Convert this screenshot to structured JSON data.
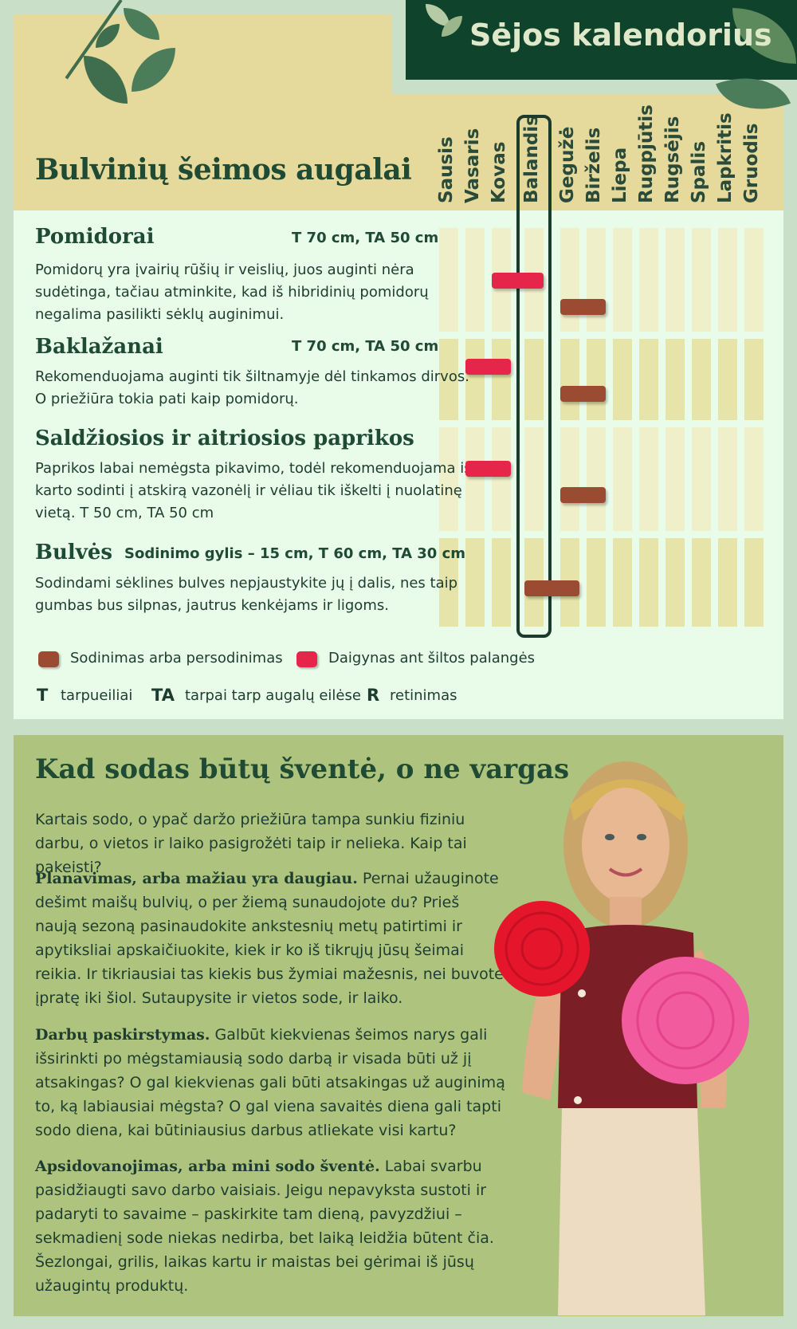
{
  "banner": {
    "title": "Sėjos kalendorius"
  },
  "calendar": {
    "section_title": "Bulvinių šeimos augalai",
    "months": [
      "Sausis",
      "Vasaris",
      "Kovas",
      "Balandis",
      "Gegužė",
      "Birželis",
      "Liepa",
      "Rugpjūtis",
      "Rugsėjis",
      "Spalis",
      "Lapkritis",
      "Gruodis"
    ],
    "highlighted_month": "Balandis",
    "plants": [
      {
        "name": "Pomidorai",
        "spacing": "T 70 cm, TA 50 cm",
        "desc": [
          "Pomidorų yra įvairių rūšių ir veislių, juos auginti nėra",
          "sudėtinga, tačiau atminkite, kad iš hibridinių pomidorų",
          "negalima pasilikti sėklų auginimui."
        ],
        "seedling": {
          "start_month": 3,
          "end_month": 4
        },
        "planting": {
          "start_month": 5,
          "end_month": 6
        }
      },
      {
        "name": "Baklažanai",
        "spacing": "T 70 cm, TA 50 cm",
        "desc": [
          "Rekomenduojama auginti tik šiltnamyje dėl tinkamos dirvos.",
          "O priežiūra tokia pati kaip pomidorų."
        ],
        "seedling": {
          "start_month": 2,
          "end_month": 3
        },
        "planting": {
          "start_month": 5,
          "end_month": 6
        }
      },
      {
        "name": "Saldžiosios ir aitriosios paprikos",
        "spacing": "",
        "desc": [
          "Paprikos labai nemėgsta pikavimo, todėl rekomenduojama iš",
          "karto sodinti į atskirą vazonėlį ir vėliau tik iškelti į nuolatinę",
          "vietą.  T 50 cm, TA 50 cm"
        ],
        "seedling": {
          "start_month": 2,
          "end_month": 3
        },
        "planting": {
          "start_month": 5,
          "end_month": 6
        }
      },
      {
        "name": "Bulvės",
        "spacing": "Sodinimo gylis – 15 cm, T 60 cm, TA 30 cm",
        "desc": [
          "Sodindami sėklines bulves nepjaustykite jų į dalis, nes taip",
          "gumbas bus silpnas, jautrus kenkėjams ir ligoms."
        ],
        "seedling": null,
        "planting": {
          "start_month": 4,
          "end_month": 5
        }
      }
    ],
    "legend": {
      "planting": "Sodinimas arba persodinimas",
      "seedling": "Daigynas ant šiltos palangės"
    },
    "abbreviations": [
      {
        "key": "T",
        "label": "tarpueiliai"
      },
      {
        "key": "TA",
        "label": "tarpai tarp augalų eilėse"
      },
      {
        "key": "R",
        "label": "retinimas"
      }
    ],
    "colors": {
      "planting": "#9a4b32",
      "seedling": "#e5264a",
      "column_light": "#efefc9",
      "column_dark": "#e7e4a9"
    }
  },
  "tips": {
    "title": "Kad sodas būtų šventė, o ne vargas",
    "intro": "Kartais sodo, o ypač daržo priežiūra tampa sunkiu fiziniu darbu, o vietos ir laiko pasigrožėti taip ir nelieka. Kaip tai pakeisti?",
    "items": [
      {
        "heading": "Planavimas, arba mažiau yra daugiau.",
        "text": " Pernai užauginote dešimt maišų bulvių, o per žiemą sunaudojote du? Prieš naują sezoną pasinaudokite ankstesnių metų patirtimi ir apytiksliai apskaičiuokite, kiek ir ko iš tikrųjų jūsų šeimai reikia. Ir tikriausiai tas kiekis bus žymiai mažesnis, nei buvote įpratę iki šiol. Sutaupysite ir vietos sode, ir laiko."
      },
      {
        "heading": "Darbų paskirstymas.",
        "text": " Galbūt kiekvienas šeimos narys gali išsirinkti po mėgstamiausią sodo darbą ir visada būti už jį atsakingas? O gal kiekvienas gali būti atsakingas už auginimą to, ką labiausiai mėgsta? O gal viena savaitės diena gali tapti sodo diena, kai būtiniausius darbus atliekate visi kartu?"
      },
      {
        "heading": "Apsidovanojimas, arba mini sodo šventė.",
        "text": " Labai svarbu pasidžiaugti savo darbo vaisiais. Jeigu nepavyksta sustoti ir padaryti to savaime – paskirkite tam dieną, pavyzdžiui – sekmadienį sode niekas nedirba, bet laiką leidžia būtent čia. Šezlongai, grilis, laikas kartu ir maistas bei gėrimai iš jūsų užaugintų produktų."
      }
    ]
  }
}
